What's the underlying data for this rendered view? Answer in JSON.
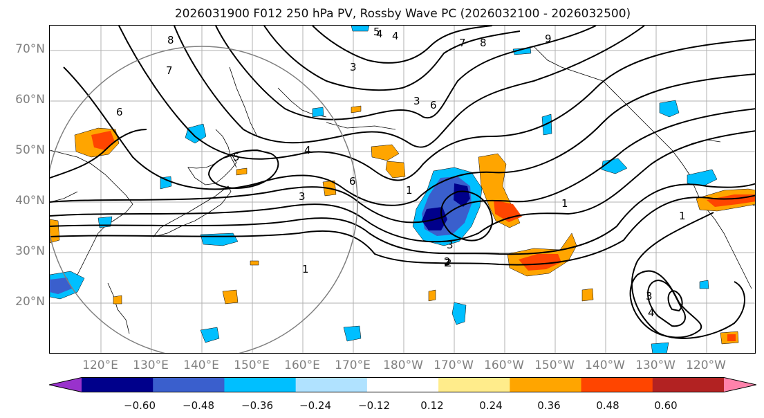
{
  "title": "2026031900 F012 250 hPa PV, Rossby Wave PC (2026032100 - 2026032500)",
  "map": {
    "projection": "equirectangular",
    "lon_range": [
      110,
      250
    ],
    "lat_range": [
      10,
      75
    ],
    "lat_labels": [
      "70°N",
      "60°N",
      "50°N",
      "40°N",
      "30°N",
      "20°N"
    ],
    "lon_labels": [
      "120°E",
      "130°E",
      "140°E",
      "150°E",
      "160°E",
      "170°E",
      "180°W",
      "170°W",
      "160°W",
      "150°W",
      "140°W",
      "130°W",
      "120°W"
    ],
    "contour_labels": [
      "8",
      "7",
      "6",
      "5",
      "4",
      "3",
      "2",
      "1",
      "1",
      "2",
      "3",
      "4",
      "3",
      "6",
      "6",
      "7",
      "8",
      "9",
      "5",
      "4",
      "3",
      "4",
      "1",
      "3",
      "2",
      "1"
    ]
  },
  "colorbar": {
    "colors": [
      "#9932cc",
      "#00008b",
      "#3a5fcd",
      "#00bfff",
      "#b0e2ff",
      "#ffffff",
      "#ffec8b",
      "#ffa500",
      "#ff4500",
      "#b22222",
      "#ff82ab"
    ],
    "ticks": [
      "−0.60",
      "−0.48",
      "−0.36",
      "−0.24",
      "−0.12",
      "0.12",
      "0.24",
      "0.36",
      "0.48",
      "0.60"
    ]
  }
}
